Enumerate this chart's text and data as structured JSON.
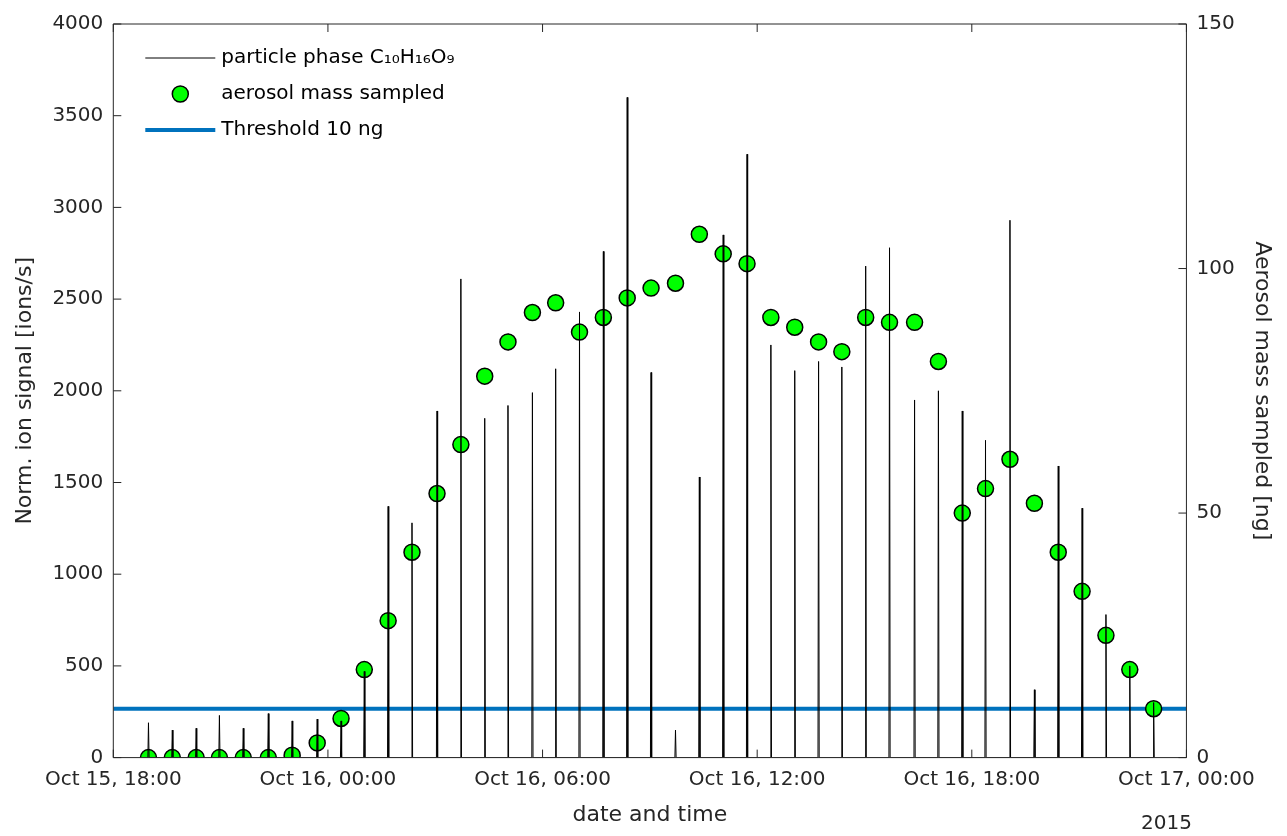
{
  "chart_data": {
    "type": "line",
    "xlabel": "date and time",
    "ylabel": "Norm. ion signal [ions/s]",
    "y2label": "Aerosol mass sampled [ng]",
    "xlim": [
      "2015-10-15T18:00",
      "2015-10-17T00:00"
    ],
    "xticks": [
      {
        "value": "2015-10-15T18:00",
        "label": "Oct 15, 18:00"
      },
      {
        "value": "2015-10-16T00:00",
        "label": "Oct 16, 00:00"
      },
      {
        "value": "2015-10-16T06:00",
        "label": "Oct 16, 06:00"
      },
      {
        "value": "2015-10-16T12:00",
        "label": "Oct 16, 12:00"
      },
      {
        "value": "2015-10-16T18:00",
        "label": "Oct 16, 18:00"
      },
      {
        "value": "2015-10-17T00:00",
        "label": "Oct 17, 00:00"
      }
    ],
    "ylim": [
      0,
      4000
    ],
    "yticks": [
      0,
      500,
      1000,
      1500,
      2000,
      2500,
      3000,
      3500,
      4000
    ],
    "y2lim": [
      0,
      150
    ],
    "y2ticks": [
      0,
      50,
      100,
      150
    ],
    "grid": false,
    "legend": "top left",
    "annotations": [
      "2015"
    ],
    "ref_lines": [
      {
        "axis": "y2",
        "value": 10,
        "label": "Threshold 10 ng",
        "color": "#0072bd",
        "line_style": "solid"
      }
    ],
    "series": [
      {
        "name": "particle phase C₁₀H₁₆O₉",
        "color": "#000000",
        "marker": "none",
        "line_style": "solid",
        "x": [
          "2015-10-15T18:58",
          "2015-10-15T18:59",
          "2015-10-15T19:00",
          "2015-10-15T19:38",
          "2015-10-15T19:39",
          "2015-10-15T19:40",
          "2015-10-15T20:18",
          "2015-10-15T20:19",
          "2015-10-15T20:20",
          "2015-10-15T20:57",
          "2015-10-15T20:58",
          "2015-10-15T20:59",
          "2015-10-15T21:37",
          "2015-10-15T21:38",
          "2015-10-15T21:39",
          "2015-10-15T22:19",
          "2015-10-15T22:20",
          "2015-10-15T22:21",
          "2015-10-15T22:59",
          "2015-10-15T23:00",
          "2015-10-15T23:01",
          "2015-10-15T23:41",
          "2015-10-15T23:42",
          "2015-10-15T23:43",
          "2015-10-16T00:21",
          "2015-10-16T00:22",
          "2015-10-16T00:23",
          "2015-10-16T01:00",
          "2015-10-16T01:01",
          "2015-10-16T01:02",
          "2015-10-16T01:40",
          "2015-10-16T01:41",
          "2015-10-16T01:42",
          "2015-10-16T02:20",
          "2015-10-16T02:21",
          "2015-10-16T02:22",
          "2015-10-16T03:02",
          "2015-10-16T03:03",
          "2015-10-16T03:04",
          "2015-10-16T03:42",
          "2015-10-16T03:43",
          "2015-10-16T03:44",
          "2015-10-16T04:22",
          "2015-10-16T04:23",
          "2015-10-16T04:24",
          "2015-10-16T05:01",
          "2015-10-16T05:02",
          "2015-10-16T05:03",
          "2015-10-16T05:42",
          "2015-10-16T05:43",
          "2015-10-16T05:44",
          "2015-10-16T06:21",
          "2015-10-16T06:22",
          "2015-10-16T06:23",
          "2015-10-16T07:01",
          "2015-10-16T07:02",
          "2015-10-16T07:03",
          "2015-10-16T07:41",
          "2015-10-16T07:42",
          "2015-10-16T07:43",
          "2015-10-16T08:21",
          "2015-10-16T08:22",
          "2015-10-16T08:23",
          "2015-10-16T09:01",
          "2015-10-16T09:02",
          "2015-10-16T09:03",
          "2015-10-16T09:42",
          "2015-10-16T09:43",
          "2015-10-16T09:44",
          "2015-10-16T10:22",
          "2015-10-16T10:23",
          "2015-10-16T10:24",
          "2015-10-16T11:02",
          "2015-10-16T11:03",
          "2015-10-16T11:04",
          "2015-10-16T11:42",
          "2015-10-16T11:43",
          "2015-10-16T11:44",
          "2015-10-16T12:22",
          "2015-10-16T12:23",
          "2015-10-16T12:24",
          "2015-10-16T13:02",
          "2015-10-16T13:03",
          "2015-10-16T13:04",
          "2015-10-16T13:42",
          "2015-10-16T13:43",
          "2015-10-16T13:44",
          "2015-10-16T14:21",
          "2015-10-16T14:22",
          "2015-10-16T14:23",
          "2015-10-16T15:01",
          "2015-10-16T15:02",
          "2015-10-16T15:03",
          "2015-10-16T15:41",
          "2015-10-16T15:42",
          "2015-10-16T15:43",
          "2015-10-16T16:23",
          "2015-10-16T16:24",
          "2015-10-16T16:25",
          "2015-10-16T17:03",
          "2015-10-16T17:04",
          "2015-10-16T17:05",
          "2015-10-16T17:43",
          "2015-10-16T17:44",
          "2015-10-16T17:45",
          "2015-10-16T18:22",
          "2015-10-16T18:23",
          "2015-10-16T18:24",
          "2015-10-16T19:03",
          "2015-10-16T19:04",
          "2015-10-16T19:05",
          "2015-10-16T19:44",
          "2015-10-16T19:45",
          "2015-10-16T19:46",
          "2015-10-16T20:24",
          "2015-10-16T20:25",
          "2015-10-16T20:26",
          "2015-10-16T21:04",
          "2015-10-16T21:05",
          "2015-10-16T21:06",
          "2015-10-16T21:44",
          "2015-10-16T21:45",
          "2015-10-16T21:46",
          "2015-10-16T22:24",
          "2015-10-16T22:25",
          "2015-10-16T22:26",
          "2015-10-16T23:04",
          "2015-10-16T23:05",
          "2015-10-16T23:06"
        ],
        "values": [
          0,
          190,
          0,
          0,
          150,
          0,
          0,
          160,
          0,
          0,
          230,
          0,
          0,
          160,
          0,
          0,
          240,
          0,
          0,
          200,
          0,
          0,
          210,
          0,
          0,
          200,
          0,
          0,
          470,
          0,
          0,
          1370,
          0,
          0,
          1280,
          0,
          0,
          1890,
          0,
          0,
          2610,
          0,
          0,
          1850,
          0,
          0,
          1920,
          0,
          0,
          1990,
          0,
          0,
          2120,
          0,
          0,
          2430,
          0,
          0,
          2760,
          0,
          0,
          3600,
          0,
          0,
          2100,
          0,
          0,
          150,
          0,
          0,
          1530,
          0,
          0,
          2850,
          0,
          0,
          3290,
          0,
          0,
          2250,
          0,
          0,
          2110,
          0,
          0,
          2160,
          0,
          0,
          2130,
          0,
          0,
          2680,
          0,
          0,
          2780,
          0,
          0,
          1950,
          0,
          0,
          2000,
          0,
          0,
          1890,
          0,
          0,
          1730,
          0,
          0,
          2930,
          0,
          0,
          370,
          0,
          0,
          1590,
          0,
          0,
          1360,
          0,
          0,
          780,
          0,
          0,
          500,
          0,
          0,
          300,
          0
        ]
      },
      {
        "name": "aerosol mass sampled",
        "type": "scatter",
        "axis": "y2",
        "color": "#00ff00",
        "marker": "circle",
        "x": [
          "2015-10-15T18:59",
          "2015-10-15T19:39",
          "2015-10-15T20:19",
          "2015-10-15T20:58",
          "2015-10-15T21:38",
          "2015-10-15T22:20",
          "2015-10-15T23:00",
          "2015-10-15T23:42",
          "2015-10-16T00:22",
          "2015-10-16T01:01",
          "2015-10-16T01:41",
          "2015-10-16T02:21",
          "2015-10-16T03:03",
          "2015-10-16T03:43",
          "2015-10-16T04:23",
          "2015-10-16T05:02",
          "2015-10-16T05:43",
          "2015-10-16T06:22",
          "2015-10-16T07:02",
          "2015-10-16T07:42",
          "2015-10-16T08:22",
          "2015-10-16T09:02",
          "2015-10-16T09:43",
          "2015-10-16T10:23",
          "2015-10-16T11:03",
          "2015-10-16T11:43",
          "2015-10-16T12:23",
          "2015-10-16T13:03",
          "2015-10-16T13:43",
          "2015-10-16T14:22",
          "2015-10-16T15:02",
          "2015-10-16T15:42",
          "2015-10-16T16:24",
          "2015-10-16T17:04",
          "2015-10-16T17:44",
          "2015-10-16T18:23",
          "2015-10-16T19:04",
          "2015-10-16T19:45",
          "2015-10-16T20:25",
          "2015-10-16T21:05",
          "2015-10-16T21:45",
          "2015-10-16T22:25",
          "2015-10-16T23:05"
        ],
        "values": [
          0,
          0,
          0,
          0,
          0,
          0,
          0.5,
          3,
          8,
          18,
          28,
          42,
          54,
          64,
          78,
          85,
          91,
          93,
          87,
          90,
          94,
          96,
          97,
          107,
          103,
          101,
          90,
          88,
          85,
          83,
          90,
          89,
          89,
          81,
          50,
          55,
          61,
          52,
          42,
          34,
          25,
          18,
          10
        ]
      }
    ]
  }
}
